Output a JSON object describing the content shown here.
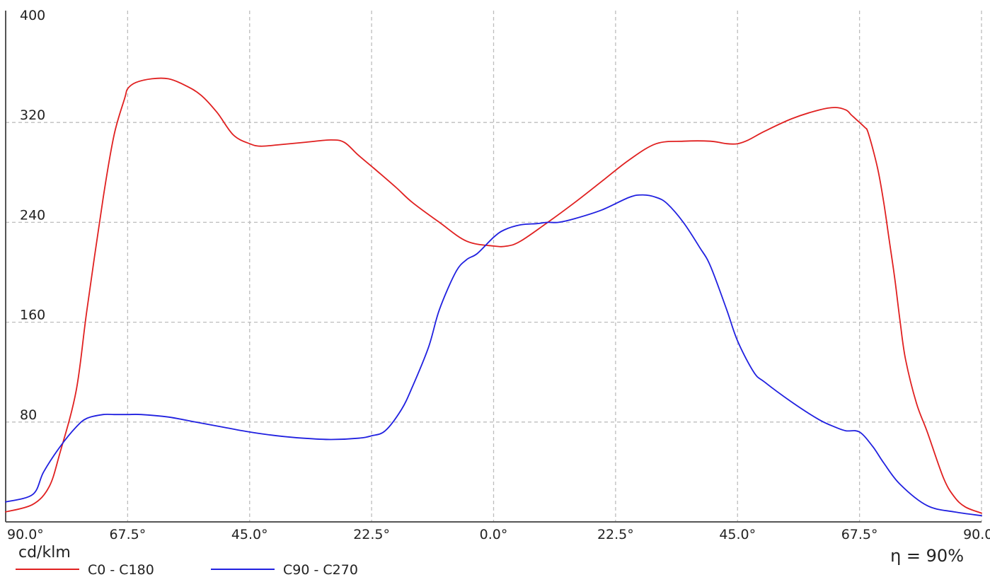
{
  "chart_data": {
    "type": "line",
    "x_tick_labels": [
      "90.0°",
      "67.5°",
      "45.0°",
      "22.5°",
      "0.0°",
      "22.5°",
      "45.0°",
      "67.5°",
      "90.0°"
    ],
    "x_tick_angles": [
      -90,
      -67.5,
      -45,
      -22.5,
      0,
      22.5,
      45,
      67.5,
      90
    ],
    "xlim": [
      -90,
      90
    ],
    "ylim": [
      0,
      400
    ],
    "y_ticks": [
      80,
      160,
      240,
      320,
      400
    ],
    "y_tick_labels": [
      "80",
      "160",
      "240",
      "320",
      "400"
    ],
    "ylabel": "cd/klm",
    "annotation": "η = 90%",
    "grid": true,
    "legend_position": "bottom-left",
    "series": [
      {
        "name": "C0 - C180",
        "color": "#e02020",
        "x": [
          -90,
          -85,
          -82,
          -80,
          -77,
          -75,
          -72,
          -70,
          -68,
          -67.5,
          -66,
          -63,
          -60,
          -57,
          -54,
          -51,
          -48,
          -45,
          -43,
          -40,
          -35,
          -30,
          -27.5,
          -25,
          -22,
          -18,
          -15,
          -10,
          -5,
          0,
          2.5,
          5,
          10,
          15,
          20,
          25,
          30,
          35,
          40,
          43,
          45,
          47,
          50,
          55,
          60,
          63,
          65,
          66,
          67,
          68.5,
          69,
          70,
          71,
          72,
          73,
          74,
          75,
          76,
          78,
          80,
          83,
          85,
          87,
          90
        ],
        "y": [
          8,
          14,
          28,
          55,
          105,
          170,
          260,
          310,
          340,
          347,
          352,
          355,
          355,
          350,
          342,
          328,
          310,
          303,
          301,
          302,
          304,
          306,
          304,
          294,
          283,
          268,
          256,
          240,
          225,
          221,
          221,
          225,
          240,
          256,
          273,
          290,
          303,
          305,
          305,
          303,
          303,
          306,
          313,
          323,
          330,
          332,
          330,
          326,
          322,
          316,
          313,
          298,
          280,
          255,
          225,
          195,
          160,
          130,
          95,
          72,
          35,
          20,
          12,
          7
        ]
      },
      {
        "name": "C90 - C270",
        "color": "#2020e0",
        "x": [
          -90,
          -85,
          -83,
          -80,
          -77,
          -75,
          -72,
          -70,
          -67.5,
          -65,
          -60,
          -55,
          -50,
          -45,
          -40,
          -35,
          -30,
          -25,
          -22.5,
          -20,
          -17,
          -15,
          -12,
          -10,
          -7,
          -5,
          -3,
          0,
          2,
          5,
          8,
          10,
          12,
          15,
          20,
          25,
          27.5,
          30,
          32,
          35,
          38,
          40,
          43,
          45,
          48,
          50,
          55,
          60,
          63,
          65,
          67.5,
          70,
          72,
          75,
          80,
          85,
          90
        ],
        "y": [
          16,
          22,
          40,
          60,
          76,
          83,
          86,
          86,
          86,
          86,
          84,
          80,
          76,
          72,
          69,
          67,
          66,
          67,
          69,
          73,
          90,
          108,
          140,
          170,
          200,
          210,
          215,
          228,
          234,
          238,
          239,
          240,
          240,
          243,
          250,
          260,
          262,
          260,
          255,
          240,
          220,
          205,
          170,
          145,
          120,
          112,
          96,
          82,
          76,
          73,
          72,
          60,
          47,
          30,
          13,
          8,
          5
        ]
      }
    ]
  }
}
